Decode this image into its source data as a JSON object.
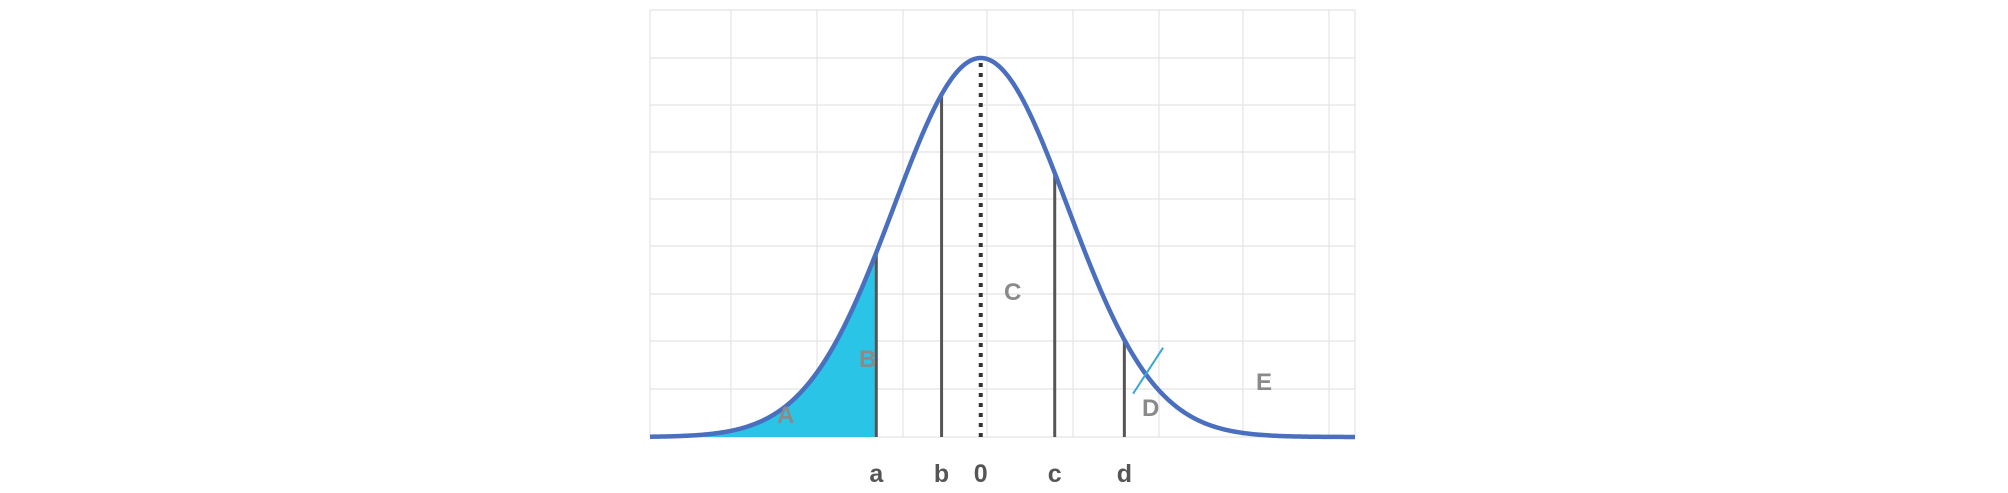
{
  "chart_data": {
    "type": "area",
    "curve": "standard normal density",
    "xlim": [
      -3.8,
      4.3
    ],
    "ylim": [
      0,
      1.0
    ],
    "grid": true,
    "colors": {
      "curve": "#4a6fbf",
      "shaded_region": "#29c4e6",
      "vertical_lines": "#555555",
      "mean_line": "#333333",
      "grid": "#e4e4e4",
      "tick_text": "#555555",
      "region_text": "#8a8a8a"
    },
    "shaded_region": {
      "label": "A",
      "x_from": -3.8,
      "x_to": -1.2
    },
    "vertical_lines": [
      {
        "label": "a",
        "x": -1.2,
        "style": "solid"
      },
      {
        "label": "b",
        "x": -0.45,
        "style": "solid"
      },
      {
        "label": "0",
        "x": 0,
        "style": "dotted"
      },
      {
        "label": "c",
        "x": 0.85,
        "style": "solid"
      },
      {
        "label": "d",
        "x": 1.65,
        "style": "solid"
      }
    ],
    "region_labels": [
      "A",
      "B",
      "C",
      "D",
      "E"
    ],
    "marker": {
      "label": "E",
      "x": 1.9
    }
  }
}
